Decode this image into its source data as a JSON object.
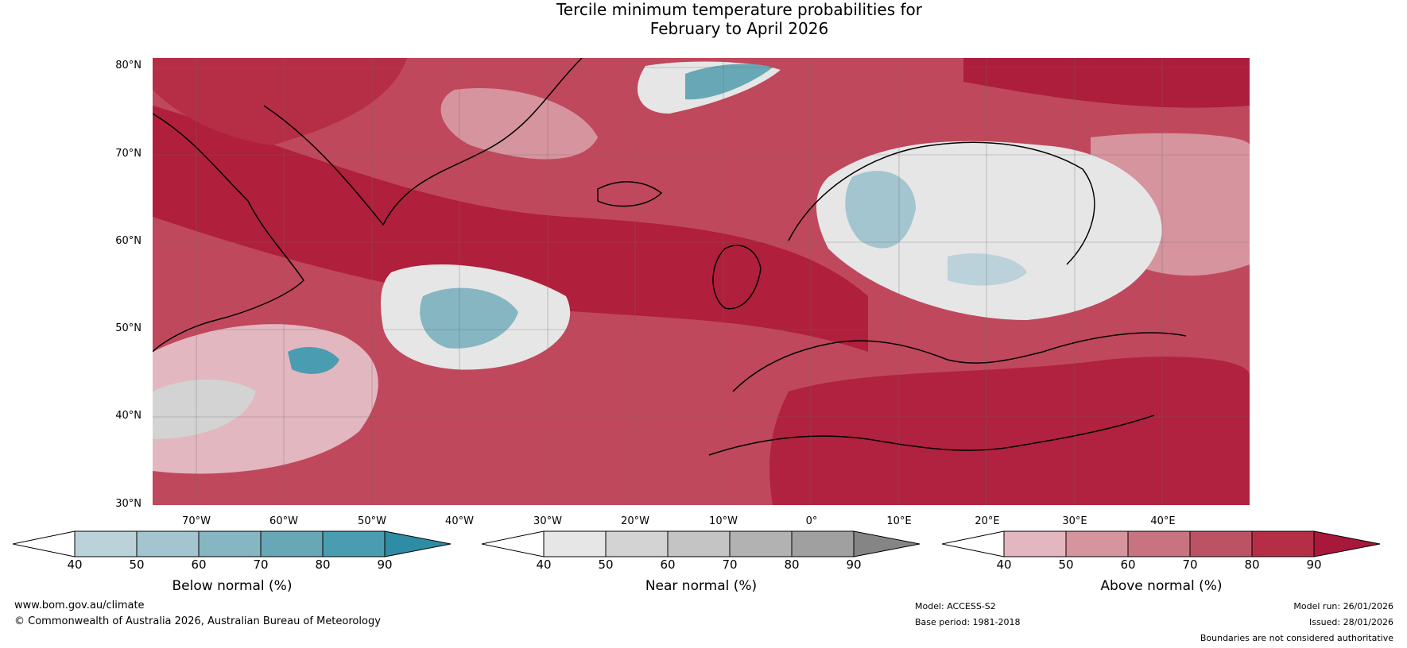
{
  "title": {
    "line1": "Tercile minimum temperature probabilities for",
    "line2": "February to April 2026"
  },
  "axes": {
    "lat_labels": [
      "80°N",
      "70°N",
      "60°N",
      "50°N",
      "40°N",
      "30°N"
    ],
    "lon_labels": [
      "70°W",
      "60°W",
      "50°W",
      "40°W",
      "30°W",
      "20°W",
      "10°W",
      "0°",
      "10°E",
      "20°E",
      "30°E",
      "40°E"
    ]
  },
  "legends": [
    {
      "title": "Below normal (%)",
      "ticks": [
        "40",
        "50",
        "60",
        "70",
        "80",
        "90"
      ],
      "colors": [
        "#ffffff",
        "#bcd2da",
        "#a3c5cf",
        "#85b6c2",
        "#68a8b6",
        "#4a9db0",
        "#2e8da4"
      ]
    },
    {
      "title": "Near normal (%)",
      "ticks": [
        "40",
        "50",
        "60",
        "70",
        "80",
        "90"
      ],
      "colors": [
        "#ffffff",
        "#e6e6e6",
        "#d3d3d3",
        "#c4c4c4",
        "#b2b2b2",
        "#a0a0a0",
        "#858585"
      ]
    },
    {
      "title": "Above normal (%)",
      "ticks": [
        "40",
        "50",
        "60",
        "70",
        "80",
        "90"
      ],
      "colors": [
        "#ffffff",
        "#e3b7bf",
        "#d6949f",
        "#c87380",
        "#bc5364",
        "#b52e45",
        "#a8183a"
      ]
    }
  ],
  "footer": {
    "website": "www.bom.gov.au/climate",
    "copyright": "© Commonwealth of Australia 2026, Australian Bureau of Meteorology",
    "model": "Model: ACCESS-S2",
    "base_period": "Base period: 1981-2018",
    "model_run": "Model run: 26/01/2026",
    "issued": "Issued: 28/01/2026",
    "disclaimer": "Boundaries are not considered authoritative"
  }
}
